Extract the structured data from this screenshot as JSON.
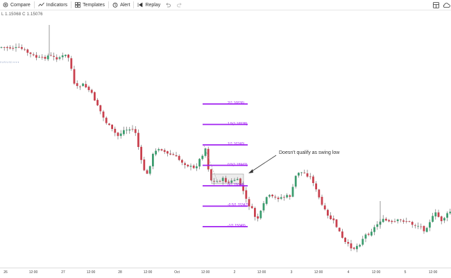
{
  "toolbar": {
    "compare": "Compare",
    "indicators": "Indicators",
    "templates": "Templates",
    "alert": "Alert",
    "replay": "Replay"
  },
  "legend": {
    "low": "L 1.15068",
    "close": "C 1.15076"
  },
  "indicator_badge": "EUR/USD ▾ ▾ ▾",
  "annotation": "Doesn't qualify as swing low",
  "fib_levels": [
    {
      "label": "2(1.16836)",
      "price": 1.16836
    },
    {
      "label": "1.5(1.16538)",
      "price": 1.16538
    },
    {
      "label": "1(1.16240)",
      "price": 1.1624
    },
    {
      "label": "0.5(1.15942)",
      "price": 1.15942
    },
    {
      "label": "0(1.15644)",
      "price": 1.15644
    },
    {
      "label": "-0.5(1.15347)",
      "price": 1.15347
    },
    {
      "label": "-1(1.15049)",
      "price": 1.15049
    }
  ],
  "x_axis": [
    "26",
    "12:00",
    "27",
    "12:00",
    "28",
    "12:00",
    "Oct",
    "12:00",
    "2",
    "12:00",
    "3",
    "12:00",
    "4",
    "12:00",
    "5",
    "12:00"
  ],
  "colors": {
    "up": "#3b9c6e",
    "down": "#c9414e",
    "fib": "#a020f0",
    "wick": "#555555"
  }
}
